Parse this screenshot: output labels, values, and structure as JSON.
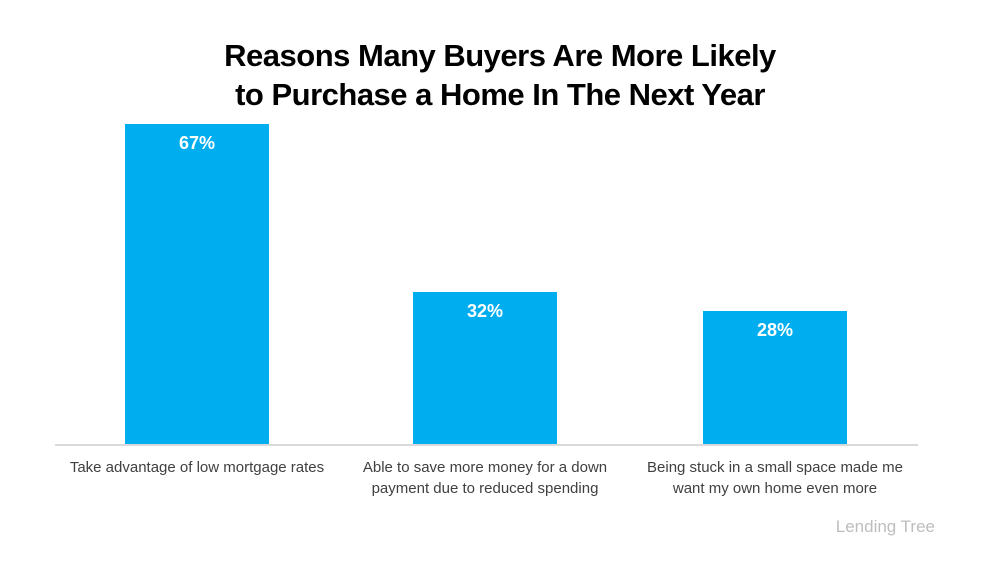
{
  "title": {
    "lines": [
      "Reasons Many Buyers Are More Likely",
      "to Purchase a Home In The Next Year"
    ]
  },
  "attribution": {
    "label": "Lending Tree"
  },
  "colors": {
    "bar": "#00AEEF",
    "bar_value_text": "#FFFFFF",
    "axis_line": "#D9D9D9",
    "category_text": "#404040",
    "title_text": "#000000",
    "attribution_text": "#BDBDBD",
    "background": "#FFFFFF"
  },
  "chart_data": {
    "type": "bar",
    "title": "Reasons Many Buyers Are More Likely to Purchase a Home In The Next Year",
    "categories": [
      "Take advantage of low mortgage rates",
      "Able to save more money for a down payment due to reduced spending",
      "Being stuck in a small space made me want my own home even more"
    ],
    "values": [
      67,
      32,
      28
    ],
    "value_labels": [
      "67%",
      "32%",
      "28%"
    ],
    "xlabel": "",
    "ylabel": "",
    "ylim": [
      0,
      70
    ],
    "grid": false,
    "legend": false,
    "value_label_position": "inside-top",
    "bar_color": "#00AEEF",
    "source": "Lending Tree"
  }
}
